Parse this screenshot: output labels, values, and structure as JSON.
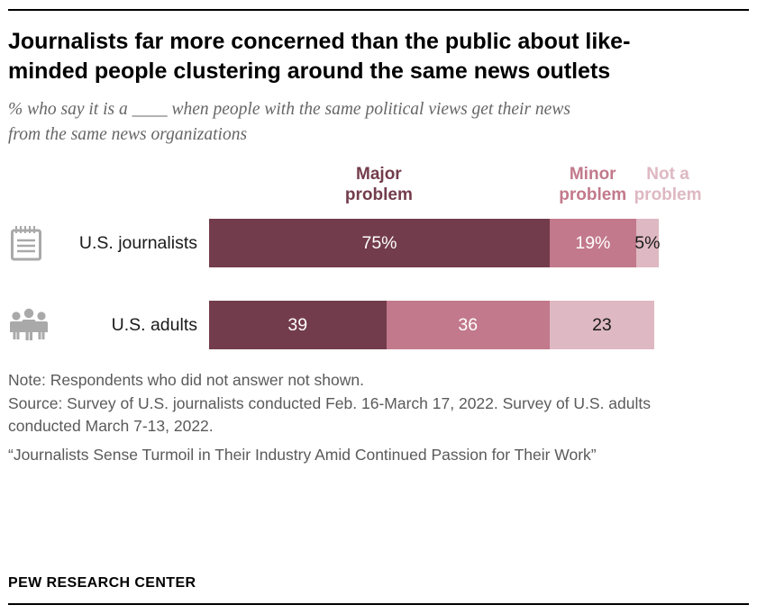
{
  "header": {
    "title": "Journalists far more concerned than the public about like-minded people clustering around the same news outlets",
    "subtitle": "% who say it is a ____ when people with the same political views get their news from the same news organizations"
  },
  "chart_data": {
    "type": "bar",
    "orientation": "horizontal-stacked",
    "xlim": [
      0,
      100
    ],
    "legend_position": "top",
    "categories": [
      "U.S. journalists",
      "U.S. adults"
    ],
    "row_icons": [
      "clipboard-icon",
      "people-icon"
    ],
    "series": [
      {
        "name": "Major problem",
        "label_lines": [
          "Major",
          "problem"
        ],
        "color": "#733C4C",
        "label_color": "#ffffff",
        "values": [
          75,
          39
        ],
        "labels": [
          "75%",
          "39"
        ]
      },
      {
        "name": "Minor problem",
        "label_lines": [
          "Minor",
          "problem"
        ],
        "color": "#C2798B",
        "label_color": "#ffffff",
        "values": [
          19,
          36
        ],
        "labels": [
          "19%",
          "36"
        ]
      },
      {
        "name": "Not a problem",
        "label_lines": [
          "Not a",
          "problem"
        ],
        "color": "#DEB8C2",
        "label_color": "#1a1a1a",
        "values": [
          5,
          23
        ],
        "labels": [
          "5%",
          "23"
        ]
      }
    ]
  },
  "footer": {
    "note": "Note: Respondents who did not answer not shown.",
    "source": "Source: Survey of U.S. journalists conducted Feb. 16-March 17, 2022. Survey of U.S. adults conducted March 7-13, 2022.",
    "report": "“Journalists Sense Turmoil in Their Industry Amid Continued Passion for Their Work”",
    "brand": "PEW RESEARCH CENTER"
  }
}
